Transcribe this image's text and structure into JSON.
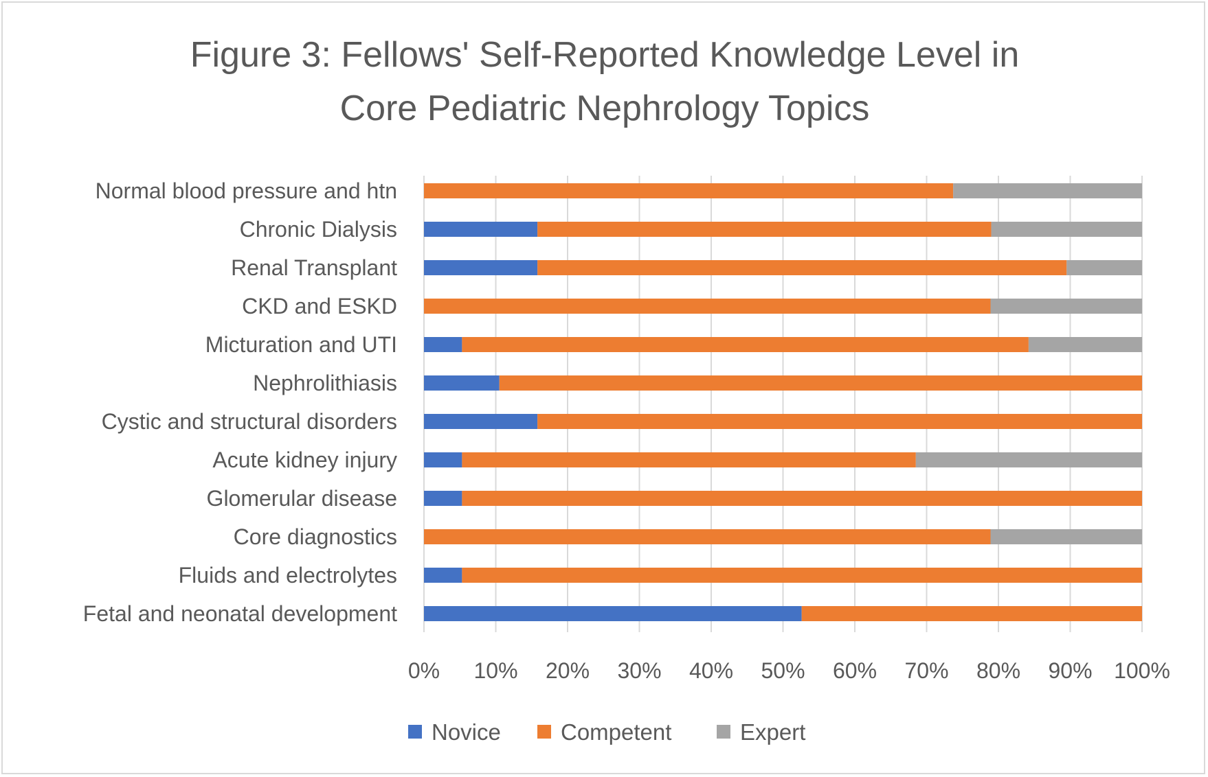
{
  "chart_data": {
    "type": "bar",
    "orientation": "horizontal",
    "stacked": true,
    "percent_stacked": true,
    "title_lines": [
      "Figure 3: Fellows' Self-Reported Knowledge Level in",
      "Core Pediatric Nephrology Topics"
    ],
    "categories": [
      "Normal blood pressure and htn",
      "Chronic Dialysis",
      "Renal Transplant",
      "CKD and ESKD",
      "Micturation and UTI",
      "Nephrolithiasis",
      "Cystic and structural disorders",
      "Acute kidney injury",
      "Glomerular disease",
      "Core diagnostics",
      "Fluids and electrolytes",
      "Fetal and neonatal development"
    ],
    "series": [
      {
        "name": "Novice",
        "color": "#4472c4",
        "values": [
          0,
          15.8,
          15.8,
          0,
          5.3,
          10.5,
          15.8,
          5.3,
          5.3,
          0,
          5.3,
          52.6
        ]
      },
      {
        "name": "Competent",
        "color": "#ed7d31",
        "values": [
          73.7,
          63.2,
          73.7,
          78.9,
          78.9,
          89.5,
          84.2,
          63.2,
          94.7,
          78.9,
          94.7,
          47.4
        ]
      },
      {
        "name": "Expert",
        "color": "#a5a5a5",
        "values": [
          26.3,
          21.0,
          10.5,
          21.1,
          15.8,
          0,
          0,
          31.5,
          0,
          21.1,
          0,
          0
        ]
      }
    ],
    "xlim": [
      0,
      100
    ],
    "x_ticks": [
      "0%",
      "10%",
      "20%",
      "30%",
      "40%",
      "50%",
      "60%",
      "70%",
      "80%",
      "90%",
      "100%"
    ],
    "grid": "vertical",
    "legend_position": "bottom"
  }
}
